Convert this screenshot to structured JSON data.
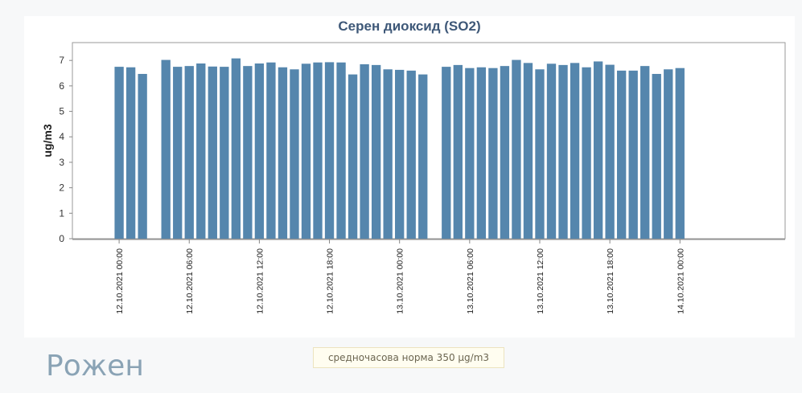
{
  "colors": {
    "bar": "#5586ad",
    "title": "#3e5878",
    "station": "#8aa3b5",
    "background": "#f7f8f9"
  },
  "station_name": "Рожен",
  "norm_label": "средночасова норма 350 µg/m3",
  "chart_data": {
    "type": "bar",
    "title": "Серен диоксид (SO2)",
    "xlabel": "",
    "ylabel": "ug/m3",
    "ylim": [
      0,
      7.7
    ],
    "yticks": [
      0,
      1,
      2,
      3,
      4,
      5,
      6,
      7
    ],
    "grid": false,
    "x_range": [
      "12.10.2021 -04:00",
      "14.10.2021 09:00"
    ],
    "x_ticks": [
      "12.10.2021 00:00",
      "12.10.2021 06:00",
      "12.10.2021 12:00",
      "12.10.2021 18:00",
      "13.10.2021 00:00",
      "13.10.2021 06:00",
      "13.10.2021 12:00",
      "13.10.2021 18:00",
      "14.10.2021 00:00"
    ],
    "categories": [
      "12.10.2021 00:00",
      "12.10.2021 01:00",
      "12.10.2021 02:00",
      "12.10.2021 03:00",
      "12.10.2021 04:00",
      "12.10.2021 05:00",
      "12.10.2021 06:00",
      "12.10.2021 07:00",
      "12.10.2021 08:00",
      "12.10.2021 09:00",
      "12.10.2021 10:00",
      "12.10.2021 11:00",
      "12.10.2021 12:00",
      "12.10.2021 13:00",
      "12.10.2021 14:00",
      "12.10.2021 15:00",
      "12.10.2021 16:00",
      "12.10.2021 17:00",
      "12.10.2021 18:00",
      "12.10.2021 19:00",
      "12.10.2021 20:00",
      "12.10.2021 21:00",
      "12.10.2021 22:00",
      "12.10.2021 23:00",
      "13.10.2021 00:00",
      "13.10.2021 01:00",
      "13.10.2021 02:00",
      "13.10.2021 03:00",
      "13.10.2021 04:00",
      "13.10.2021 05:00",
      "13.10.2021 06:00",
      "13.10.2021 07:00",
      "13.10.2021 08:00",
      "13.10.2021 09:00",
      "13.10.2021 10:00",
      "13.10.2021 11:00",
      "13.10.2021 12:00",
      "13.10.2021 13:00",
      "13.10.2021 14:00",
      "13.10.2021 15:00",
      "13.10.2021 16:00",
      "13.10.2021 17:00",
      "13.10.2021 18:00",
      "13.10.2021 19:00",
      "13.10.2021 20:00",
      "13.10.2021 21:00",
      "13.10.2021 22:00",
      "13.10.2021 23:00",
      "14.10.2021 00:00"
    ],
    "values": [
      6.75,
      6.73,
      6.47,
      null,
      7.02,
      6.75,
      6.78,
      6.88,
      6.76,
      6.75,
      7.08,
      6.78,
      6.88,
      6.92,
      6.73,
      6.65,
      6.87,
      6.92,
      6.93,
      6.92,
      6.45,
      6.85,
      6.82,
      6.65,
      6.63,
      6.6,
      6.45,
      null,
      6.75,
      6.82,
      6.7,
      6.73,
      6.7,
      6.78,
      7.02,
      6.9,
      6.65,
      6.87,
      6.82,
      6.9,
      6.73,
      6.96,
      6.83,
      6.6,
      6.6,
      6.78,
      6.47,
      6.65,
      6.7
    ]
  }
}
